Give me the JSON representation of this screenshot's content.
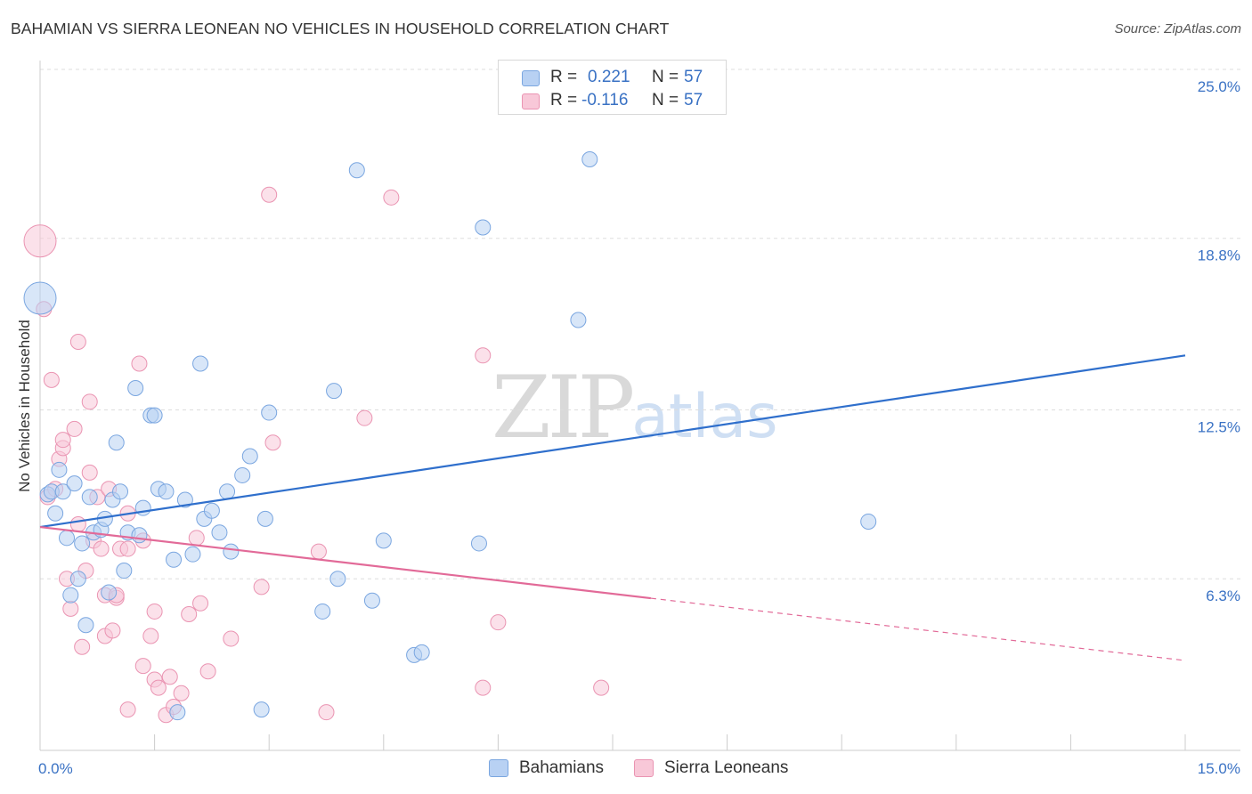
{
  "title": "BAHAMIAN VS SIERRA LEONEAN NO VEHICLES IN HOUSEHOLD CORRELATION CHART",
  "source": "Source: ZipAtlas.com",
  "watermark": {
    "zip": "ZIP",
    "atlas": "atlas"
  },
  "legend": {
    "rows": [
      {
        "r_label": "R =",
        "r_value": "0.221",
        "n_label": "N =",
        "n_value": "57"
      },
      {
        "r_label": "R =",
        "r_value": "-0.116",
        "n_label": "N =",
        "n_value": "57"
      }
    ]
  },
  "bottom_legend": {
    "series1": "Bahamians",
    "series2": "Sierra Leoneans"
  },
  "colors": {
    "blue_fill": "#b8d1f3",
    "blue_stroke": "#7aa6e0",
    "blue_line": "#2f6fcc",
    "pink_fill": "#f8c8d8",
    "pink_stroke": "#ea94b2",
    "pink_line": "#e26a98",
    "tick_label": "#3a72c4",
    "grid": "#dddddd"
  },
  "chart_data": {
    "type": "scatter",
    "title": "BAHAMIAN VS SIERRA LEONEAN NO VEHICLES IN HOUSEHOLD CORRELATION CHART",
    "xlabel": "",
    "ylabel": "No Vehicles in Household",
    "xlim": [
      0.0,
      15.0
    ],
    "ylim": [
      0.0,
      25.0
    ],
    "x_tick_labels": [
      "0.0%",
      "15.0%"
    ],
    "y_ticks": [
      6.3,
      12.5,
      18.8,
      25.0
    ],
    "y_tick_labels": [
      "6.3%",
      "12.5%",
      "18.8%",
      "25.0%"
    ],
    "grid": true,
    "legend_position": "top-center",
    "series": [
      {
        "name": "Bahamians",
        "R": 0.221,
        "N": 57,
        "trend": {
          "x": [
            0.0,
            15.0
          ],
          "y": [
            8.2,
            14.5
          ],
          "dashed_from": null
        },
        "points": [
          {
            "x": 0.0,
            "y": 16.6,
            "big": true
          },
          {
            "x": 0.1,
            "y": 9.4
          },
          {
            "x": 0.15,
            "y": 9.5
          },
          {
            "x": 0.2,
            "y": 8.7
          },
          {
            "x": 0.25,
            "y": 10.3
          },
          {
            "x": 0.3,
            "y": 9.5
          },
          {
            "x": 0.35,
            "y": 7.8
          },
          {
            "x": 0.4,
            "y": 5.7
          },
          {
            "x": 0.45,
            "y": 9.8
          },
          {
            "x": 0.5,
            "y": 6.3
          },
          {
            "x": 0.55,
            "y": 7.6
          },
          {
            "x": 0.6,
            "y": 4.6
          },
          {
            "x": 0.65,
            "y": 9.3
          },
          {
            "x": 0.7,
            "y": 8.0
          },
          {
            "x": 0.8,
            "y": 8.1
          },
          {
            "x": 0.85,
            "y": 8.5
          },
          {
            "x": 0.9,
            "y": 5.8
          },
          {
            "x": 0.95,
            "y": 9.2
          },
          {
            "x": 1.0,
            "y": 11.3
          },
          {
            "x": 1.05,
            "y": 9.5
          },
          {
            "x": 1.1,
            "y": 6.6
          },
          {
            "x": 1.15,
            "y": 8.0
          },
          {
            "x": 1.25,
            "y": 13.3
          },
          {
            "x": 1.3,
            "y": 7.9
          },
          {
            "x": 1.35,
            "y": 8.9
          },
          {
            "x": 1.45,
            "y": 12.3
          },
          {
            "x": 1.5,
            "y": 12.3
          },
          {
            "x": 1.55,
            "y": 9.6
          },
          {
            "x": 1.65,
            "y": 9.5
          },
          {
            "x": 1.75,
            "y": 7.0
          },
          {
            "x": 1.8,
            "y": 1.4
          },
          {
            "x": 1.9,
            "y": 9.2
          },
          {
            "x": 2.0,
            "y": 7.2
          },
          {
            "x": 2.1,
            "y": 14.2
          },
          {
            "x": 2.15,
            "y": 8.5
          },
          {
            "x": 2.25,
            "y": 8.8
          },
          {
            "x": 2.35,
            "y": 8.0
          },
          {
            "x": 2.45,
            "y": 9.5
          },
          {
            "x": 2.5,
            "y": 7.3
          },
          {
            "x": 2.65,
            "y": 10.1
          },
          {
            "x": 2.75,
            "y": 10.8
          },
          {
            "x": 2.9,
            "y": 1.5
          },
          {
            "x": 2.95,
            "y": 8.5
          },
          {
            "x": 3.0,
            "y": 12.4
          },
          {
            "x": 3.7,
            "y": 5.1
          },
          {
            "x": 3.85,
            "y": 13.2
          },
          {
            "x": 3.9,
            "y": 6.3
          },
          {
            "x": 4.15,
            "y": 21.3
          },
          {
            "x": 4.35,
            "y": 5.5
          },
          {
            "x": 4.5,
            "y": 7.7
          },
          {
            "x": 4.9,
            "y": 3.5
          },
          {
            "x": 5.0,
            "y": 3.6
          },
          {
            "x": 5.75,
            "y": 7.6
          },
          {
            "x": 5.8,
            "y": 19.2
          },
          {
            "x": 7.05,
            "y": 15.8
          },
          {
            "x": 7.2,
            "y": 21.7
          },
          {
            "x": 10.85,
            "y": 8.4
          }
        ]
      },
      {
        "name": "Sierra Leoneans",
        "R": -0.116,
        "N": 57,
        "trend": {
          "x": [
            0.0,
            15.0
          ],
          "y": [
            8.2,
            3.3
          ],
          "dashed_from": 8.0
        },
        "points": [
          {
            "x": 0.0,
            "y": 18.7,
            "big": true
          },
          {
            "x": 0.05,
            "y": 16.2
          },
          {
            "x": 0.1,
            "y": 9.3
          },
          {
            "x": 0.15,
            "y": 13.6
          },
          {
            "x": 0.2,
            "y": 9.6
          },
          {
            "x": 0.25,
            "y": 10.7
          },
          {
            "x": 0.3,
            "y": 11.1
          },
          {
            "x": 0.3,
            "y": 11.4
          },
          {
            "x": 0.35,
            "y": 6.3
          },
          {
            "x": 0.4,
            "y": 5.2
          },
          {
            "x": 0.45,
            "y": 11.8
          },
          {
            "x": 0.5,
            "y": 8.3
          },
          {
            "x": 0.5,
            "y": 15.0
          },
          {
            "x": 0.55,
            "y": 3.8
          },
          {
            "x": 0.6,
            "y": 6.6
          },
          {
            "x": 0.65,
            "y": 10.2
          },
          {
            "x": 0.65,
            "y": 12.8
          },
          {
            "x": 0.7,
            "y": 7.7
          },
          {
            "x": 0.75,
            "y": 9.3
          },
          {
            "x": 0.8,
            "y": 7.4
          },
          {
            "x": 0.85,
            "y": 5.7
          },
          {
            "x": 0.85,
            "y": 4.2
          },
          {
            "x": 0.9,
            "y": 9.6
          },
          {
            "x": 0.95,
            "y": 4.4
          },
          {
            "x": 1.0,
            "y": 5.6
          },
          {
            "x": 1.0,
            "y": 5.7
          },
          {
            "x": 1.05,
            "y": 7.4
          },
          {
            "x": 1.15,
            "y": 7.4
          },
          {
            "x": 1.15,
            "y": 8.7
          },
          {
            "x": 1.15,
            "y": 1.5
          },
          {
            "x": 1.3,
            "y": 14.2
          },
          {
            "x": 1.35,
            "y": 7.7
          },
          {
            "x": 1.35,
            "y": 3.1
          },
          {
            "x": 1.45,
            "y": 4.2
          },
          {
            "x": 1.5,
            "y": 2.6
          },
          {
            "x": 1.5,
            "y": 5.1
          },
          {
            "x": 1.55,
            "y": 2.3
          },
          {
            "x": 1.65,
            "y": 1.3
          },
          {
            "x": 1.7,
            "y": 2.7
          },
          {
            "x": 1.75,
            "y": 1.6
          },
          {
            "x": 1.85,
            "y": 2.1
          },
          {
            "x": 1.95,
            "y": 5.0
          },
          {
            "x": 2.05,
            "y": 7.8
          },
          {
            "x": 2.1,
            "y": 5.4
          },
          {
            "x": 2.2,
            "y": 2.9
          },
          {
            "x": 2.5,
            "y": 4.1
          },
          {
            "x": 2.9,
            "y": 6.0
          },
          {
            "x": 3.0,
            "y": 20.4
          },
          {
            "x": 3.05,
            "y": 11.3
          },
          {
            "x": 3.65,
            "y": 7.3
          },
          {
            "x": 3.75,
            "y": 1.4
          },
          {
            "x": 4.25,
            "y": 12.2
          },
          {
            "x": 4.6,
            "y": 20.3
          },
          {
            "x": 5.8,
            "y": 14.5
          },
          {
            "x": 5.8,
            "y": 2.3
          },
          {
            "x": 6.0,
            "y": 4.7
          },
          {
            "x": 7.35,
            "y": 2.3
          }
        ]
      }
    ]
  }
}
